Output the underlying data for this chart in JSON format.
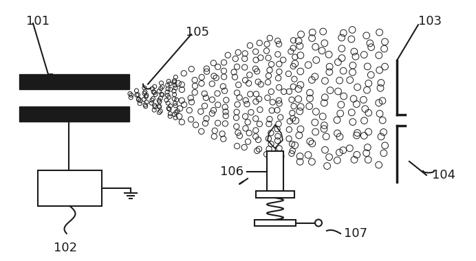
{
  "bg_color": "#ffffff",
  "line_color": "#1a1a1a",
  "thick_bar_color": "#1a1a1a",
  "label_101": "101",
  "label_102": "102",
  "label_103": "103",
  "label_104": "104",
  "label_105": "105",
  "label_106": "106",
  "label_107": "107",
  "label_fontsize": 13,
  "figw": 6.92,
  "figh": 3.8,
  "dpi": 100
}
